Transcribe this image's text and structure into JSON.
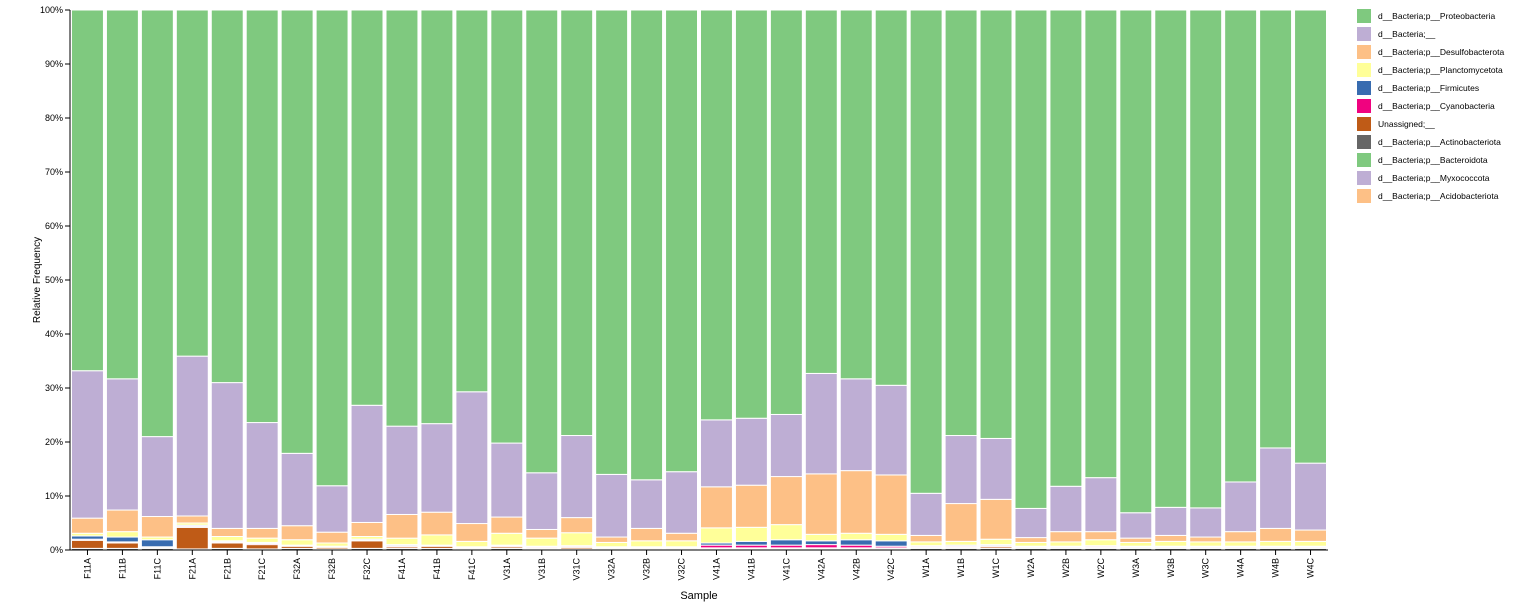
{
  "chart_data": {
    "type": "bar",
    "stacked": true,
    "normalized": true,
    "xlabel": "Sample",
    "ylabel": "Relative Frequency",
    "ylim": [
      0,
      100
    ],
    "y_ticks": [
      "0%",
      "10%",
      "20%",
      "30%",
      "40%",
      "50%",
      "60%",
      "70%",
      "80%",
      "90%",
      "100%"
    ],
    "categories": [
      "F11A",
      "F11B",
      "F11C",
      "F21A",
      "F21B",
      "F21C",
      "F32A",
      "F32B",
      "F32C",
      "F41A",
      "F41B",
      "F41C",
      "V31A",
      "V31B",
      "V31C",
      "V32A",
      "V32B",
      "V32C",
      "V41A",
      "V41B",
      "V41C",
      "V42A",
      "V42B",
      "V42C",
      "W1A",
      "W1B",
      "W1C",
      "W2A",
      "W2B",
      "W2C",
      "W3A",
      "W3B",
      "W3C",
      "W4A",
      "W4B",
      "W4C"
    ],
    "legend_position": "top-right",
    "series": [
      {
        "name": "d__Bacteria;p__Actinobacteriota",
        "color": "#666666",
        "values": [
          0.3,
          0.3,
          0.3,
          0.2,
          0.3,
          0.2,
          0.3,
          0.2,
          0.3,
          0.3,
          0.3,
          0.2,
          0.3,
          0.2,
          0.2,
          0.2,
          0.2,
          0.2,
          0.2,
          0.2,
          0.2,
          0.2,
          0.2,
          0.2,
          0.3,
          0.3,
          0.3,
          0.3,
          0.3,
          0.3,
          0.3,
          0.3,
          0.3,
          0.3,
          0.3,
          0.3
        ]
      },
      {
        "name": "Unassigned;__",
        "color": "#bf5b17",
        "values": [
          1.5,
          1.0,
          0.2,
          4.0,
          1.0,
          0.8,
          0.4,
          0.3,
          1.4,
          0.3,
          0.4,
          0.2,
          0.3,
          0.2,
          0.3,
          0.2,
          0.2,
          0.2,
          0.2,
          0.2,
          0.2,
          0.2,
          0.2,
          0.2,
          0.2,
          0.2,
          0.3,
          0.2,
          0.2,
          0.2,
          0.2,
          0.2,
          0.2,
          0.2,
          0.2,
          0.2
        ]
      },
      {
        "name": "d__Bacteria;p__Cyanobacteria",
        "color": "#f0027f",
        "values": [
          0.2,
          0.2,
          0.1,
          0.2,
          0.2,
          0.2,
          0.1,
          0.1,
          0.1,
          0.2,
          0.1,
          0.1,
          0.2,
          0.2,
          0.2,
          0.1,
          0.1,
          0.1,
          0.5,
          0.5,
          0.5,
          0.6,
          0.5,
          0.3,
          0.2,
          0.2,
          0.2,
          0.1,
          0.1,
          0.2,
          0.1,
          0.1,
          0.1,
          0.1,
          0.1,
          0.1
        ]
      },
      {
        "name": "d__Bacteria;p__Firmicutes",
        "color": "#386cb0",
        "values": [
          0.6,
          0.9,
          1.3,
          0.2,
          0.2,
          0.2,
          0.1,
          0.1,
          0.2,
          0.2,
          0.1,
          0.1,
          0.1,
          0.1,
          0.1,
          0.1,
          0.1,
          0.1,
          0.4,
          0.7,
          1.0,
          0.7,
          1.0,
          1.0,
          0.1,
          0.2,
          0.2,
          0.1,
          0.1,
          0.1,
          0.1,
          0.1,
          0.1,
          0.1,
          0.1,
          0.1
        ]
      },
      {
        "name": "d__Bacteria;p__Planctomycetota",
        "color": "#ffff99",
        "values": [
          0.5,
          1.0,
          0.5,
          0.4,
          0.8,
          0.8,
          1.0,
          0.6,
          0.5,
          1.2,
          1.9,
          1.0,
          2.2,
          1.5,
          2.4,
          0.8,
          1.1,
          1.1,
          2.8,
          2.6,
          2.8,
          1.2,
          1.2,
          1.2,
          0.7,
          0.7,
          1.0,
          0.7,
          0.8,
          1.1,
          0.7,
          0.9,
          0.8,
          0.8,
          0.9,
          0.9
        ]
      },
      {
        "name": "d__Bacteria;p__Desulfobacterota",
        "color": "#fdc086",
        "values": [
          2.8,
          4.0,
          3.8,
          1.3,
          1.5,
          1.8,
          2.6,
          2.0,
          2.6,
          4.4,
          4.2,
          3.3,
          3.0,
          1.6,
          2.8,
          1.0,
          2.3,
          1.4,
          7.6,
          7.8,
          8.9,
          11.2,
          11.6,
          11.0,
          1.2,
          7.0,
          7.4,
          0.9,
          1.9,
          1.5,
          0.8,
          1.1,
          0.9,
          1.9,
          2.4,
          2.1
        ]
      },
      {
        "name": "d__Bacteria;__",
        "color": "#beaed4",
        "values": [
          27.3,
          24.3,
          14.8,
          29.6,
          27.0,
          19.6,
          13.4,
          8.6,
          21.7,
          16.4,
          16.4,
          24.4,
          13.7,
          10.5,
          15.2,
          11.6,
          9.0,
          11.4,
          12.4,
          12.4,
          11.5,
          18.6,
          17.0,
          16.6,
          7.8,
          12.6,
          11.3,
          5.4,
          8.4,
          10.0,
          4.7,
          5.2,
          5.4,
          9.2,
          14.9,
          12.4
        ]
      },
      {
        "name": "d__Bacteria;p__Proteobacteria",
        "color": "#7fc97f",
        "values": [
          66.8,
          68.3,
          79.0,
          64.1,
          69.0,
          76.4,
          82.1,
          88.1,
          73.2,
          77.3,
          76.6,
          70.7,
          80.2,
          85.7,
          78.8,
          86.0,
          87.0,
          85.5,
          75.9,
          75.6,
          74.9,
          67.3,
          68.3,
          69.5,
          89.5,
          78.8,
          79.5,
          92.3,
          88.2,
          86.6,
          93.1,
          92.1,
          92.2,
          87.4,
          81.1,
          84.0
        ]
      }
    ],
    "legend": [
      {
        "label": "d__Bacteria;p__Proteobacteria",
        "color": "#7fc97f"
      },
      {
        "label": "d__Bacteria;__",
        "color": "#beaed4"
      },
      {
        "label": "d__Bacteria;p__Desulfobacterota",
        "color": "#fdc086"
      },
      {
        "label": "d__Bacteria;p__Planctomycetota",
        "color": "#ffff99"
      },
      {
        "label": "d__Bacteria;p__Firmicutes",
        "color": "#386cb0"
      },
      {
        "label": "d__Bacteria;p__Cyanobacteria",
        "color": "#f0027f"
      },
      {
        "label": "Unassigned;__",
        "color": "#bf5b17"
      },
      {
        "label": "d__Bacteria;p__Actinobacteriota",
        "color": "#666666"
      },
      {
        "label": "d__Bacteria;p__Bacteroidota",
        "color": "#7fc97f"
      },
      {
        "label": "d__Bacteria;p__Myxococcota",
        "color": "#beaed4"
      },
      {
        "label": "d__Bacteria;p__Acidobacteriota",
        "color": "#fdc086"
      }
    ]
  }
}
